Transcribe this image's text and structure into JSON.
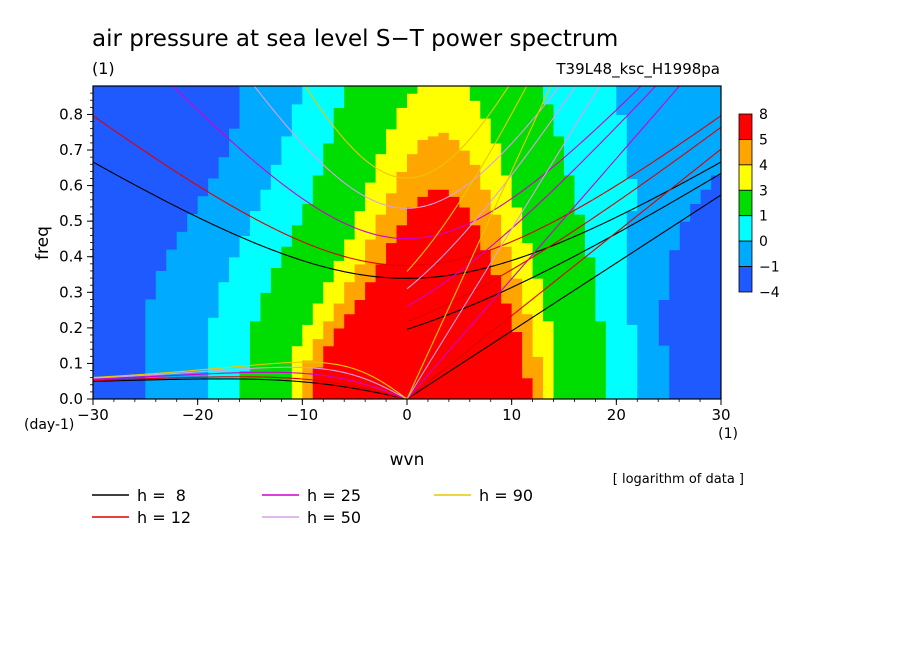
{
  "chart_data": {
    "type": "heatmap",
    "title": "air pressure at sea level S−T power spectrum",
    "title_unit": "(1)",
    "subtitle_right": "T39L48_ksc_H1998pa",
    "xlabel": "wvn",
    "x_unit": "(1)",
    "ylabel": "freq",
    "y_unit": "(day-1)",
    "note": "[ logarithm of data ]",
    "xlim": [
      -30,
      30
    ],
    "ylim": [
      0.0,
      0.88
    ],
    "x_ticks": [
      "−30",
      "−20",
      "−10",
      "0",
      "10",
      "20",
      "30"
    ],
    "y_ticks": [
      "0.0",
      "0.1",
      "0.2",
      "0.3",
      "0.4",
      "0.5",
      "0.6",
      "0.7",
      "0.8"
    ],
    "colorbar": {
      "labels": [
        "8",
        "5",
        "4",
        "3",
        "1",
        "0",
        "−1",
        "−4"
      ],
      "colors": [
        "#ff0000",
        "#ffa500",
        "#ffff00",
        "#00dd00",
        "#00ffff",
        "#00aaff",
        "#1e5aff"
      ]
    },
    "contour_levels": [
      -1,
      0,
      1,
      3,
      4,
      5
    ],
    "level_colors": [
      "#00aaff",
      "#00ffff",
      "#00dd00",
      "#ffff00",
      "#ffa500",
      "#ff0000"
    ],
    "background_color": "#1e5aff",
    "dispersion_curves": [
      {
        "name": "h =  8",
        "label": "h =  8",
        "h": 8,
        "color": "#000000"
      },
      {
        "name": "h = 12",
        "label": "h = 12",
        "h": 12,
        "color": "#e00000"
      },
      {
        "name": "h = 25",
        "label": "h = 25",
        "h": 25,
        "color": "#d000d0"
      },
      {
        "name": "h = 50",
        "label": "h = 50",
        "h": 50,
        "color": "#d8a0e8"
      },
      {
        "name": "h = 90",
        "label": "h = 90",
        "h": 90,
        "color": "#e8c800"
      }
    ]
  }
}
